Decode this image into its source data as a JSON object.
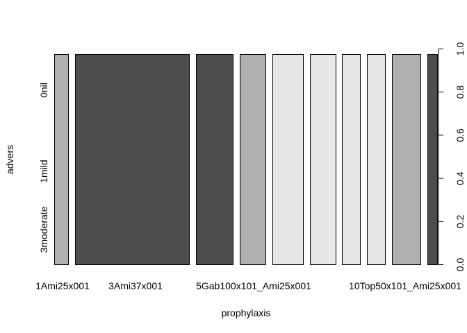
{
  "chart_data": {
    "type": "spineplot",
    "xlabel": "prophylaxis",
    "ylabel": "advers",
    "y_axis_categories": [
      "0nil",
      "1mild",
      "3moderate"
    ],
    "x_tick_labels_shown": [
      "1Ami25x001",
      "3Ami37x001",
      "5Gab100x101_Ami25x001",
      "10Top50x101_Ami25x001"
    ],
    "right_axis_ticks": [
      "0.0",
      "0.2",
      "0.4",
      "0.6",
      "0.8",
      "1.0"
    ],
    "right_axis_range": [
      0,
      1
    ],
    "bars": [
      {
        "relative_width": 0.034,
        "fill": "#b0b0b0"
      },
      {
        "relative_width": 0.268,
        "fill": "#4d4d4d"
      },
      {
        "relative_width": 0.088,
        "fill": "#4d4d4d"
      },
      {
        "relative_width": 0.061,
        "fill": "#b0b0b0"
      },
      {
        "relative_width": 0.073,
        "fill": "#e6e6e6"
      },
      {
        "relative_width": 0.061,
        "fill": "#e6e6e6"
      },
      {
        "relative_width": 0.044,
        "fill": "#e6e6e6"
      },
      {
        "relative_width": 0.044,
        "fill": "#e6e6e6"
      },
      {
        "relative_width": 0.068,
        "fill": "#b0b0b0"
      },
      {
        "relative_width": 0.024,
        "fill": "#4d4d4d"
      }
    ]
  }
}
